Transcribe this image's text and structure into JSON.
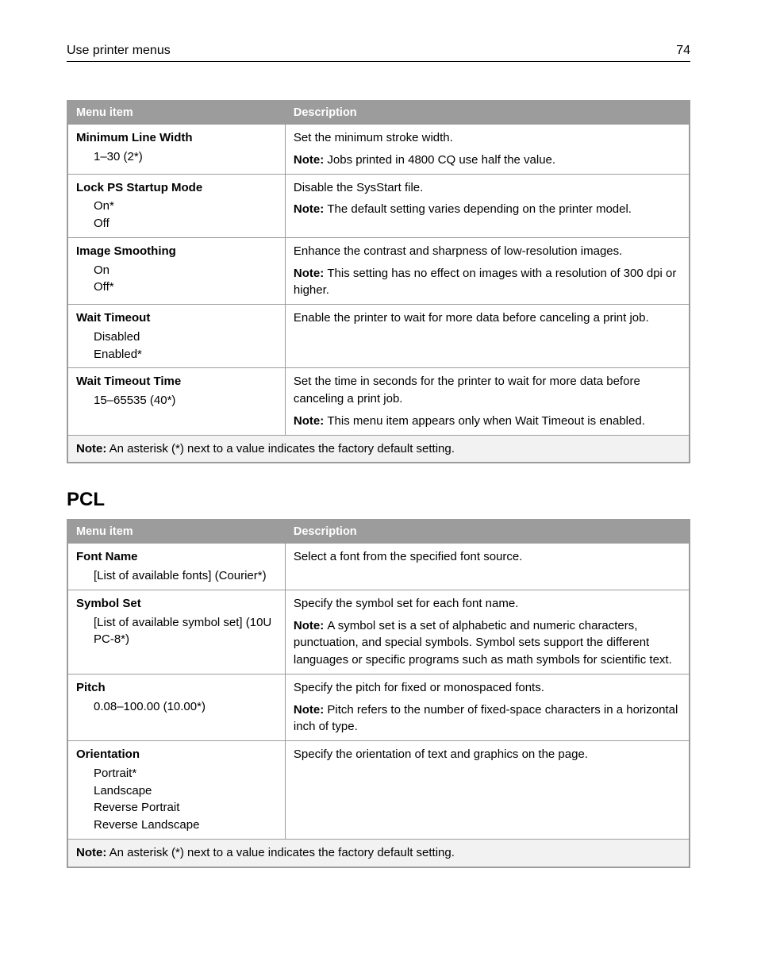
{
  "header": {
    "title": "Use printer menus",
    "page_number": "74"
  },
  "table1": {
    "headers": [
      "Menu item",
      "Description"
    ],
    "rows": [
      {
        "title": "Minimum Line Width",
        "options": [
          "1–30 (2*)"
        ],
        "desc": "Set the minimum stroke width.",
        "note": "Jobs printed in 4800 CQ use half the value."
      },
      {
        "title": "Lock PS Startup Mode",
        "options": [
          "On*",
          "Off"
        ],
        "desc": "Disable the SysStart file.",
        "note": "The default setting varies depending on the printer model."
      },
      {
        "title": "Image Smoothing",
        "options": [
          "On",
          "Off*"
        ],
        "desc": "Enhance the contrast and sharpness of low-resolution images.",
        "note": "This setting has no effect on images with a resolution of 300 dpi or higher."
      },
      {
        "title": "Wait Timeout",
        "options": [
          "Disabled",
          "Enabled*"
        ],
        "desc": "Enable the printer to wait for more data before canceling a print job.",
        "note": ""
      },
      {
        "title": "Wait Timeout Time",
        "options": [
          "15–65535 (40*)"
        ],
        "desc": "Set the time in seconds for the printer to wait for more data before canceling a print job.",
        "note": "This menu item appears only when Wait Timeout is enabled."
      }
    ],
    "footnote_label": "Note:",
    "footnote": " An asterisk (*) next to a value indicates the factory default setting."
  },
  "section2_title": "PCL",
  "table2": {
    "headers": [
      "Menu item",
      "Description"
    ],
    "rows": [
      {
        "title": "Font Name",
        "options": [
          "[List of available fonts] (Courier*)"
        ],
        "desc": "Select a font from the specified font source.",
        "note": ""
      },
      {
        "title": "Symbol Set",
        "options": [
          "[List of available symbol set] (10U PC-8*)"
        ],
        "desc": "Specify the symbol set for each font name.",
        "note": "A symbol set is a set of alphabetic and numeric characters, punctuation, and special symbols. Symbol sets support the different languages or specific programs such as math symbols for scientific text."
      },
      {
        "title": "Pitch",
        "options": [
          "0.08–100.00 (10.00*)"
        ],
        "desc": "Specify the pitch for fixed or monospaced fonts.",
        "note": "Pitch refers to the number of fixed-space characters in a horizontal inch of type."
      },
      {
        "title": "Orientation",
        "options": [
          "Portrait*",
          "Landscape",
          "Reverse Portrait",
          "Reverse Landscape"
        ],
        "desc": "Specify the orientation of text and graphics on the page.",
        "note": ""
      }
    ],
    "footnote_label": "Note:",
    "footnote": " An asterisk (*) next to a value indicates the factory default setting."
  },
  "labels": {
    "note": "Note: "
  }
}
